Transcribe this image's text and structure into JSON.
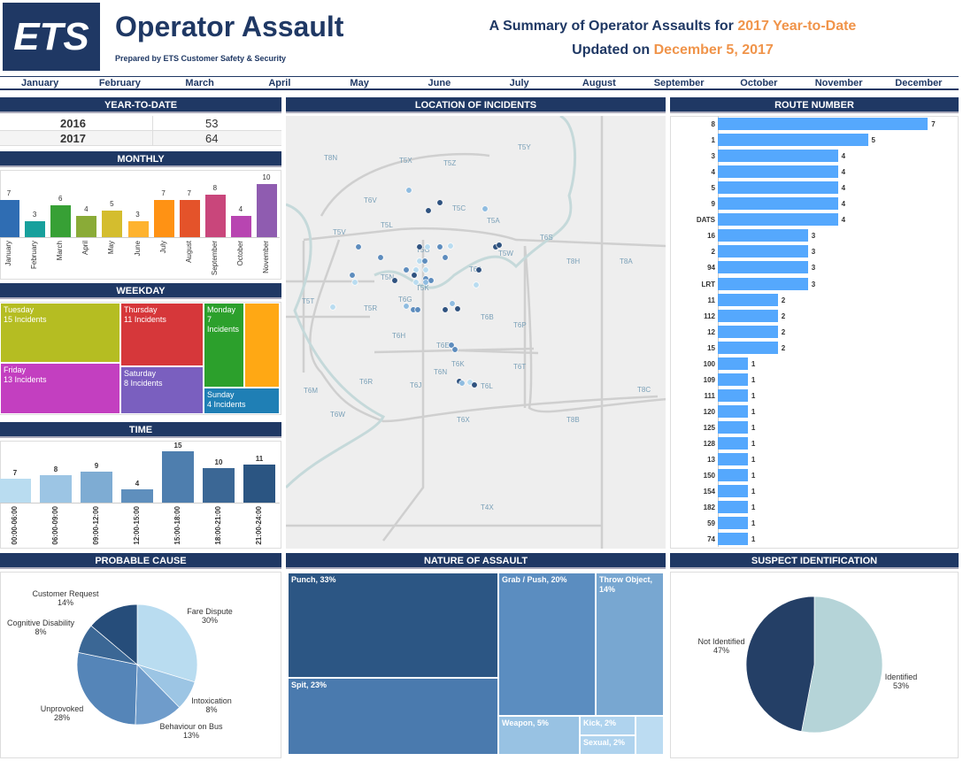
{
  "header": {
    "logo": "ETS",
    "title": "Operator Assault",
    "prepared": "Prepared by ETS Customer Safety & Security",
    "summary_prefix": "A Summary of Operator Assaults for ",
    "summary_highlight": "2017 Year-to-Date",
    "updated_prefix": "Updated on ",
    "updated_date": "December 5, 2017",
    "accent": "#f0944a",
    "navy": "#1f3864"
  },
  "months": [
    "January",
    "February",
    "March",
    "April",
    "May",
    "June",
    "July",
    "August",
    "September",
    "October",
    "November",
    "December"
  ],
  "panels": {
    "ytd": "YEAR-TO-DATE",
    "monthly": "MONTHLY",
    "weekday": "WEEKDAY",
    "time": "TIME",
    "location": "LOCATION OF INCIDENTS",
    "route": "ROUTE NUMBER",
    "cause": "PROBABLE CAUSE",
    "nature": "NATURE OF ASSAULT",
    "suspect": "SUSPECT IDENTIFICATION"
  },
  "ytd": [
    {
      "year": "2016",
      "count": "53"
    },
    {
      "year": "2017",
      "count": "64"
    }
  ],
  "map_labels": [
    "T8N",
    "T5X",
    "T5Z",
    "T5Y",
    "T6V",
    "T5C",
    "T5A",
    "T5L",
    "T5V",
    "T6S",
    "T5G",
    "T5W",
    "T8H",
    "T8A",
    "T6A",
    "T5N",
    "T5K",
    "T5T",
    "T6G",
    "T5R",
    "T6B",
    "T6P",
    "T6H",
    "T6E",
    "T6K",
    "T6N",
    "T6T",
    "T6R",
    "T6J",
    "T6L",
    "T6M",
    "T8C",
    "T6W",
    "T6X",
    "T8B",
    "T4X"
  ],
  "chart_data": [
    {
      "id": "monthly",
      "type": "bar",
      "categories": [
        "January",
        "February",
        "March",
        "April",
        "May",
        "June",
        "July",
        "August",
        "September",
        "October",
        "November"
      ],
      "values": [
        7,
        3,
        6,
        4,
        5,
        3,
        7,
        7,
        8,
        4,
        10
      ],
      "colors": [
        "#2f6db3",
        "#17a09c",
        "#37a035",
        "#8aab37",
        "#d4bd2e",
        "#feb32f",
        "#ff9214",
        "#e4532a",
        "#c9467b",
        "#b845b1",
        "#8f5cb0"
      ]
    },
    {
      "id": "time",
      "type": "bar",
      "categories": [
        "00:00-06:00",
        "06:00-09:00",
        "09:00-12:00",
        "12:00-15:00",
        "15:00-18:00",
        "18:00-21:00",
        "21:00-24:00"
      ],
      "values": [
        7,
        8,
        9,
        4,
        15,
        10,
        11
      ],
      "colors": [
        "#b9dcf0",
        "#9cc5e4",
        "#7eacd3",
        "#5f8fbd",
        "#4e7eae",
        "#3b6795",
        "#2b5582"
      ]
    },
    {
      "id": "route",
      "type": "bar",
      "orientation": "horizontal",
      "categories": [
        "8",
        "1",
        "3",
        "4",
        "5",
        "9",
        "DATS",
        "16",
        "2",
        "94",
        "LRT",
        "11",
        "112",
        "12",
        "15",
        "100",
        "109",
        "111",
        "120",
        "125",
        "128",
        "13",
        "150",
        "154",
        "182",
        "59",
        "74"
      ],
      "values": [
        7,
        5,
        4,
        4,
        4,
        4,
        4,
        3,
        3,
        3,
        3,
        2,
        2,
        2,
        2,
        1,
        1,
        1,
        1,
        1,
        1,
        1,
        1,
        1,
        1,
        1,
        1
      ],
      "color": "#55a8fd"
    },
    {
      "id": "weekday",
      "type": "treemap",
      "items": [
        {
          "label": "Tuesday",
          "value": "15 Incidents",
          "color": "#b5bd22"
        },
        {
          "label": "Friday",
          "value": "13 Incidents",
          "color": "#c33fc0"
        },
        {
          "label": "Thursday",
          "value": "11 Incidents",
          "color": "#d6373a"
        },
        {
          "label": "Saturday",
          "value": "8 Incidents",
          "color": "#7a5fbf"
        },
        {
          "label": "Monday",
          "value": "7 Incidents",
          "color": "#2ca02c"
        },
        {
          "label": "",
          "value": "",
          "color": "#ffa814"
        },
        {
          "label": "Sunday",
          "value": "4 Incidents",
          "color": "#1f7fb5"
        }
      ]
    },
    {
      "id": "cause",
      "type": "pie",
      "slices": [
        {
          "label": "Fare Dispute",
          "value": 30,
          "color": "#b9dcf0"
        },
        {
          "label": "Intoxication",
          "value": 8,
          "color": "#9cc5e4"
        },
        {
          "label": "Behaviour on Bus",
          "value": 13,
          "color": "#6f9ccb"
        },
        {
          "label": "Unprovoked",
          "value": 28,
          "color": "#5585b8"
        },
        {
          "label": "Cognitive Disability",
          "value": 8,
          "color": "#3b6795"
        },
        {
          "label": "Customer Request",
          "value": 14,
          "color": "#264d7a"
        }
      ]
    },
    {
      "id": "nature",
      "type": "treemap",
      "items": [
        {
          "label": "Punch, 33%",
          "value": 33,
          "color": "#2c5684"
        },
        {
          "label": "Spit, 23%",
          "value": 23,
          "color": "#4a7aae"
        },
        {
          "label": "Grab / Push, 20%",
          "value": 20,
          "color": "#5b8dc0"
        },
        {
          "label": "Throw Object, 14%",
          "value": 14,
          "color": "#78a7d1"
        },
        {
          "label": "Weapon, 5%",
          "value": 5,
          "color": "#98c2e3"
        },
        {
          "label": "Kick, 2%",
          "value": 2,
          "color": "#afd3ee"
        },
        {
          "label": "Sexual, 2%",
          "value": 2,
          "color": "#afd3ee"
        },
        {
          "label": "",
          "value": 1,
          "color": "#bcdcf2"
        }
      ]
    },
    {
      "id": "suspect",
      "type": "pie",
      "slices": [
        {
          "label": "Identified",
          "value": 53,
          "color": "#b5d4d8"
        },
        {
          "label": "Not Identified",
          "value": 47,
          "color": "#243f66"
        }
      ]
    }
  ]
}
